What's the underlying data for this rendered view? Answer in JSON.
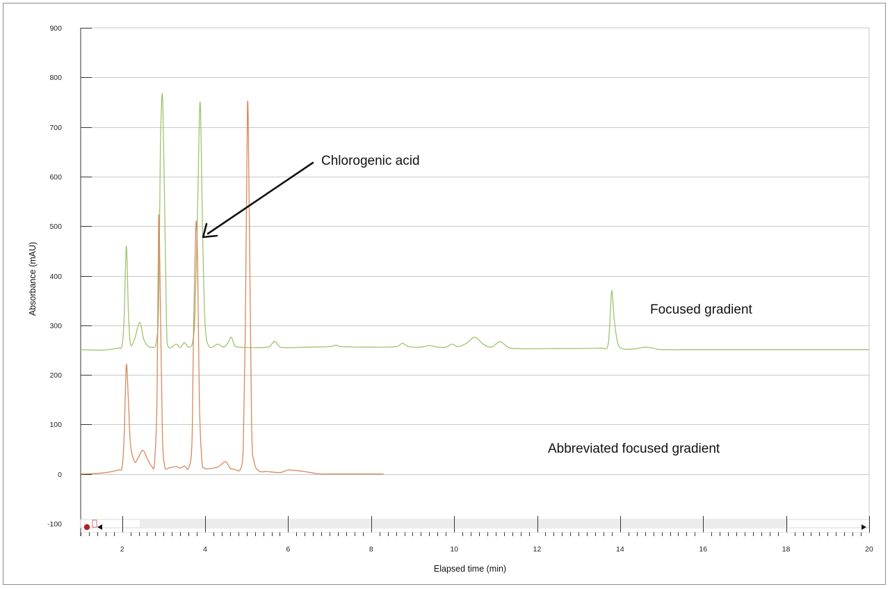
{
  "chart_data": {
    "type": "line",
    "title": "",
    "xlabel": "Elapsed time (min)",
    "ylabel": "Absorbance (mAU)",
    "xlim": [
      1,
      20
    ],
    "ylim": [
      -100,
      900
    ],
    "x_ticks": [
      2,
      4,
      6,
      8,
      10,
      12,
      14,
      16,
      18,
      20
    ],
    "y_ticks": [
      -100,
      0,
      100,
      200,
      300,
      400,
      500,
      600,
      700,
      800,
      900
    ],
    "grid": "horizontal",
    "legend": "none",
    "series": [
      {
        "color": "#9cc46a",
        "x": [
          1.0,
          1.5,
          1.9,
          2.0,
          2.05,
          2.1,
          2.15,
          2.2,
          2.3,
          2.42,
          2.52,
          2.62,
          2.72,
          2.82,
          2.88,
          2.92,
          2.97,
          3.02,
          3.07,
          3.12,
          3.3,
          3.4,
          3.5,
          3.6,
          3.7,
          3.76,
          3.82,
          3.88,
          3.94,
          4.0,
          4.1,
          4.3,
          4.45,
          4.55,
          4.63,
          4.72,
          4.85,
          5.0,
          5.5,
          5.6,
          5.68,
          5.78,
          5.9,
          6.5,
          7.0,
          7.15,
          7.3,
          8.0,
          8.6,
          8.75,
          8.9,
          9.2,
          9.4,
          9.6,
          9.8,
          9.95,
          10.1,
          10.3,
          10.5,
          10.7,
          10.9,
          11.1,
          11.3,
          11.5,
          12.5,
          13.5,
          13.7,
          13.76,
          13.8,
          13.86,
          13.95,
          14.1,
          14.4,
          14.6,
          14.8,
          15.0,
          16.0,
          18.0,
          20.0
        ],
        "values": [
          251,
          250,
          254,
          260,
          320,
          460,
          330,
          262,
          272,
          306,
          272,
          258,
          256,
          264,
          345,
          650,
          765,
          560,
          300,
          256,
          262,
          255,
          265,
          256,
          266,
          330,
          545,
          750,
          480,
          300,
          257,
          262,
          256,
          265,
          276,
          258,
          256,
          255,
          256,
          262,
          268,
          258,
          255,
          256,
          257,
          260,
          257,
          256,
          257,
          264,
          257,
          256,
          259,
          256,
          256,
          262,
          257,
          264,
          276,
          262,
          256,
          267,
          256,
          253,
          253,
          254,
          258,
          320,
          370,
          310,
          262,
          252,
          253,
          256,
          254,
          251,
          251,
          251,
          251
        ]
      },
      {
        "color": "#d8875a",
        "x": [
          1.0,
          1.5,
          1.9,
          2.0,
          2.05,
          2.1,
          2.15,
          2.2,
          2.3,
          2.38,
          2.5,
          2.62,
          2.72,
          2.78,
          2.84,
          2.88,
          2.92,
          2.97,
          3.02,
          3.07,
          3.12,
          3.3,
          3.4,
          3.5,
          3.6,
          3.68,
          3.72,
          3.78,
          3.82,
          3.86,
          3.92,
          3.98,
          4.1,
          4.3,
          4.4,
          4.5,
          4.6,
          4.7,
          4.85,
          4.92,
          4.97,
          5.02,
          5.06,
          5.12,
          5.18,
          5.3,
          5.5,
          5.8,
          6.0,
          6.2,
          6.4,
          6.6,
          6.8,
          7.0,
          8.3
        ],
        "values": [
          0,
          2,
          8,
          15,
          80,
          220,
          150,
          60,
          25,
          32,
          48,
          28,
          15,
          22,
          150,
          518,
          350,
          80,
          18,
          10,
          12,
          15,
          12,
          16,
          12,
          60,
          280,
          505,
          420,
          150,
          28,
          12,
          11,
          14,
          20,
          25,
          12,
          10,
          10,
          60,
          300,
          745,
          550,
          100,
          25,
          6,
          5,
          3,
          8,
          7,
          5,
          2,
          0,
          0,
          0
        ]
      }
    ],
    "annotations": {
      "chlorogenic_acid": "Chlorogenic acid",
      "focused_gradient": "Focused gradient",
      "abbreviated_focused_gradient": "Abbreviated focused gradient"
    },
    "colors": {
      "grid": "#c8c8c8",
      "axis": "#333333",
      "arrow": "#111111",
      "scrubber_marker": "#b22222"
    }
  }
}
